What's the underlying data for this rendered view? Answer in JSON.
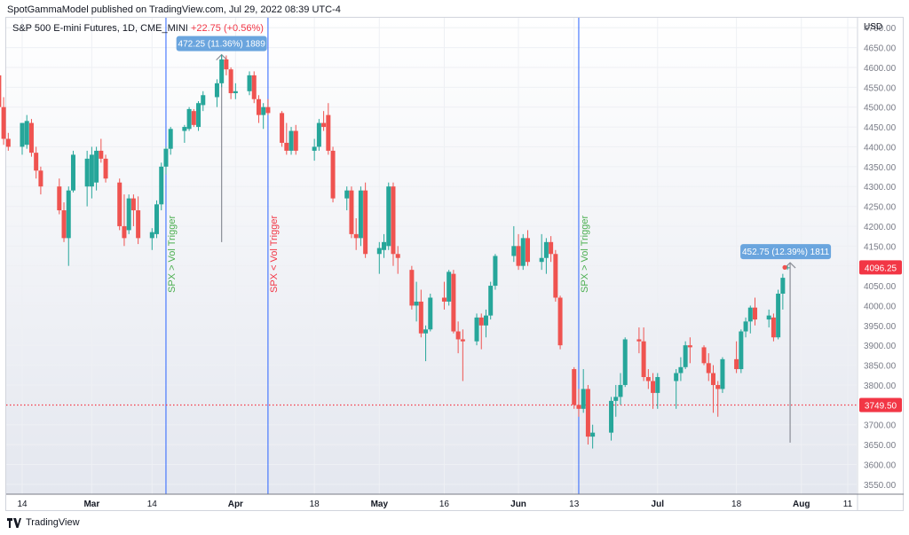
{
  "header": {
    "published": "SpotGammaModel published on TradingView.com, Jul 29, 2022 08:39 UTC-4"
  },
  "legend": {
    "symbol": "S&P 500 E-mini Futures, 1D, CME_MINI",
    "change": "+22.75 (+0.56%)"
  },
  "footer": {
    "brand": "TradingView"
  },
  "colors": {
    "up": "#26a69a",
    "down": "#ef5350",
    "vline": "#2962ff",
    "green_text": "#4caf50",
    "red_text": "#f23645",
    "badge": "#6aa5de"
  },
  "chart_data": {
    "type": "candlestick",
    "currency_label": "USD",
    "ylim": [
      3525,
      4725
    ],
    "y_ticks": [
      3550,
      3600,
      3650,
      3700,
      3750,
      3800,
      3850,
      3900,
      3950,
      4000,
      4050,
      4100,
      4150,
      4200,
      4250,
      4300,
      4350,
      4400,
      4450,
      4500,
      4550,
      4600,
      4650,
      4700
    ],
    "x_ticks": [
      {
        "label": "14",
        "date": "2022-02-14"
      },
      {
        "label": "Mar",
        "date": "2022-03-01"
      },
      {
        "label": "14",
        "date": "2022-03-14"
      },
      {
        "label": "Apr",
        "date": "2022-04-01"
      },
      {
        "label": "18",
        "date": "2022-04-18"
      },
      {
        "label": "May",
        "date": "2022-05-02"
      },
      {
        "label": "16",
        "date": "2022-05-16"
      },
      {
        "label": "Jun",
        "date": "2022-06-01"
      },
      {
        "label": "13",
        "date": "2022-06-13"
      },
      {
        "label": "Jul",
        "date": "2022-07-01"
      },
      {
        "label": "18",
        "date": "2022-07-18"
      },
      {
        "label": "Aug",
        "date": "2022-08-01"
      },
      {
        "label": "11",
        "date": "2022-08-11"
      }
    ],
    "price_labels": [
      {
        "value": 4096.25,
        "text": "4096.25"
      },
      {
        "value": 3749.5,
        "text": "3749.50"
      }
    ],
    "reference_line": 3749.5,
    "vertical_lines": [
      {
        "date": "2022-03-17",
        "text": "SPX > Vol Trigger",
        "color": "green"
      },
      {
        "date": "2022-04-08",
        "text": "SPX < Vol Trigger",
        "color": "red"
      },
      {
        "date": "2022-06-14",
        "text": "SPX > Vol Trigger",
        "color": "green"
      }
    ],
    "measures": [
      {
        "from_date": "2022-03-29",
        "from": 4160,
        "to": 4632,
        "text": "472.25 (11.36%) 1889"
      },
      {
        "from_date": "2022-07-29",
        "from": 3655,
        "to": 4108,
        "text": "452.75 (12.39%) 1811"
      }
    ],
    "candles": [
      {
        "d": "2022-02-09",
        "o": 4580,
        "h": 4588,
        "l": 4495,
        "c": 4500
      },
      {
        "d": "2022-02-10",
        "o": 4500,
        "h": 4525,
        "l": 4405,
        "c": 4420
      },
      {
        "d": "2022-02-11",
        "o": 4420,
        "h": 4435,
        "l": 4390,
        "c": 4400
      },
      {
        "d": "2022-02-14",
        "o": 4400,
        "h": 4460,
        "l": 4380,
        "c": 4460
      },
      {
        "d": "2022-02-15",
        "o": 4405,
        "h": 4480,
        "l": 4395,
        "c": 4465
      },
      {
        "d": "2022-02-16",
        "o": 4460,
        "h": 4470,
        "l": 4375,
        "c": 4385
      },
      {
        "d": "2022-02-17",
        "o": 4385,
        "h": 4400,
        "l": 4320,
        "c": 4340
      },
      {
        "d": "2022-02-18",
        "o": 4340,
        "h": 4350,
        "l": 4280,
        "c": 4300
      },
      {
        "d": "2022-02-22",
        "o": 4300,
        "h": 4320,
        "l": 4230,
        "c": 4240
      },
      {
        "d": "2022-02-23",
        "o": 4240,
        "h": 4260,
        "l": 4160,
        "c": 4170
      },
      {
        "d": "2022-02-24",
        "o": 4170,
        "h": 4300,
        "l": 4100,
        "c": 4290
      },
      {
        "d": "2022-02-25",
        "o": 4290,
        "h": 4390,
        "l": 4285,
        "c": 4380
      },
      {
        "d": "2022-02-28",
        "o": 4300,
        "h": 4390,
        "l": 4250,
        "c": 4370
      },
      {
        "d": "2022-03-01",
        "o": 4300,
        "h": 4400,
        "l": 4270,
        "c": 4380
      },
      {
        "d": "2022-03-02",
        "o": 4310,
        "h": 4400,
        "l": 4290,
        "c": 4390
      },
      {
        "d": "2022-03-03",
        "o": 4390,
        "h": 4420,
        "l": 4360,
        "c": 4370
      },
      {
        "d": "2022-03-04",
        "o": 4370,
        "h": 4380,
        "l": 4310,
        "c": 4320
      },
      {
        "d": "2022-03-07",
        "o": 4310,
        "h": 4320,
        "l": 4190,
        "c": 4200
      },
      {
        "d": "2022-03-08",
        "o": 4200,
        "h": 4280,
        "l": 4150,
        "c": 4170
      },
      {
        "d": "2022-03-09",
        "o": 4190,
        "h": 4280,
        "l": 4180,
        "c": 4270
      },
      {
        "d": "2022-03-10",
        "o": 4270,
        "h": 4280,
        "l": 4200,
        "c": 4240
      },
      {
        "d": "2022-03-11",
        "o": 4240,
        "h": 4275,
        "l": 4155,
        "c": 4170
      },
      {
        "d": "2022-03-14",
        "o": 4170,
        "h": 4195,
        "l": 4140,
        "c": 4185
      },
      {
        "d": "2022-03-15",
        "o": 4180,
        "h": 4265,
        "l": 4170,
        "c": 4255
      },
      {
        "d": "2022-03-16",
        "o": 4255,
        "h": 4360,
        "l": 4240,
        "c": 4350
      },
      {
        "d": "2022-03-17",
        "o": 4350,
        "h": 4400,
        "l": 4330,
        "c": 4395
      },
      {
        "d": "2022-03-18",
        "o": 4395,
        "h": 4450,
        "l": 4380,
        "c": 4445
      },
      {
        "d": "2022-03-21",
        "o": 4440,
        "h": 4455,
        "l": 4410,
        "c": 4450
      },
      {
        "d": "2022-03-22",
        "o": 4445,
        "h": 4500,
        "l": 4440,
        "c": 4495
      },
      {
        "d": "2022-03-23",
        "o": 4490,
        "h": 4495,
        "l": 4450,
        "c": 4455
      },
      {
        "d": "2022-03-24",
        "o": 4450,
        "h": 4515,
        "l": 4440,
        "c": 4510
      },
      {
        "d": "2022-03-25",
        "o": 4505,
        "h": 4540,
        "l": 4490,
        "c": 4530
      },
      {
        "d": "2022-03-28",
        "o": 4525,
        "h": 4570,
        "l": 4500,
        "c": 4560
      },
      {
        "d": "2022-03-29",
        "o": 4560,
        "h": 4632,
        "l": 4550,
        "c": 4620
      },
      {
        "d": "2022-03-30",
        "o": 4620,
        "h": 4630,
        "l": 4580,
        "c": 4595
      },
      {
        "d": "2022-03-31",
        "o": 4595,
        "h": 4600,
        "l": 4520,
        "c": 4535
      },
      {
        "d": "2022-04-01",
        "o": 4535,
        "h": 4560,
        "l": 4520,
        "c": 4540
      },
      {
        "d": "2022-04-04",
        "o": 4540,
        "h": 4590,
        "l": 4530,
        "c": 4580
      },
      {
        "d": "2022-04-05",
        "o": 4580,
        "h": 4590,
        "l": 4510,
        "c": 4520
      },
      {
        "d": "2022-04-06",
        "o": 4520,
        "h": 4530,
        "l": 4460,
        "c": 4480
      },
      {
        "d": "2022-04-07",
        "o": 4480,
        "h": 4510,
        "l": 4445,
        "c": 4500
      },
      {
        "d": "2022-04-08",
        "o": 4500,
        "h": 4520,
        "l": 4480,
        "c": 4485
      },
      {
        "d": "2022-04-11",
        "o": 4485,
        "h": 4490,
        "l": 4400,
        "c": 4410
      },
      {
        "d": "2022-04-12",
        "o": 4410,
        "h": 4460,
        "l": 4380,
        "c": 4390
      },
      {
        "d": "2022-04-13",
        "o": 4390,
        "h": 4450,
        "l": 4380,
        "c": 4440
      },
      {
        "d": "2022-04-14",
        "o": 4440,
        "h": 4455,
        "l": 4380,
        "c": 4390
      },
      {
        "d": "2022-04-18",
        "o": 4390,
        "h": 4420,
        "l": 4365,
        "c": 4400
      },
      {
        "d": "2022-04-19",
        "o": 4400,
        "h": 4470,
        "l": 4390,
        "c": 4460
      },
      {
        "d": "2022-04-20",
        "o": 4460,
        "h": 4490,
        "l": 4440,
        "c": 4450
      },
      {
        "d": "2022-04-21",
        "o": 4480,
        "h": 4510,
        "l": 4380,
        "c": 4390
      },
      {
        "d": "2022-04-22",
        "o": 4390,
        "h": 4400,
        "l": 4260,
        "c": 4270
      },
      {
        "d": "2022-04-25",
        "o": 4270,
        "h": 4300,
        "l": 4240,
        "c": 4290
      },
      {
        "d": "2022-04-26",
        "o": 4290,
        "h": 4300,
        "l": 4170,
        "c": 4180
      },
      {
        "d": "2022-04-27",
        "o": 4180,
        "h": 4220,
        "l": 4140,
        "c": 4170
      },
      {
        "d": "2022-04-28",
        "o": 4170,
        "h": 4300,
        "l": 4150,
        "c": 4290
      },
      {
        "d": "2022-04-29",
        "o": 4290,
        "h": 4310,
        "l": 4120,
        "c": 4130
      },
      {
        "d": "2022-05-02",
        "o": 4130,
        "h": 4160,
        "l": 4080,
        "c": 4145
      },
      {
        "d": "2022-05-03",
        "o": 4140,
        "h": 4180,
        "l": 4120,
        "c": 4160
      },
      {
        "d": "2022-05-04",
        "o": 4150,
        "h": 4310,
        "l": 4140,
        "c": 4300
      },
      {
        "d": "2022-05-05",
        "o": 4300,
        "h": 4310,
        "l": 4100,
        "c": 4130
      },
      {
        "d": "2022-05-06",
        "o": 4130,
        "h": 4150,
        "l": 4080,
        "c": 4120
      },
      {
        "d": "2022-05-09",
        "o": 4090,
        "h": 4100,
        "l": 3990,
        "c": 4000
      },
      {
        "d": "2022-05-10",
        "o": 4000,
        "h": 4060,
        "l": 3960,
        "c": 4010
      },
      {
        "d": "2022-05-11",
        "o": 4010,
        "h": 4040,
        "l": 3920,
        "c": 3930
      },
      {
        "d": "2022-05-12",
        "o": 3930,
        "h": 3950,
        "l": 3860,
        "c": 3940
      },
      {
        "d": "2022-05-13",
        "o": 3940,
        "h": 4030,
        "l": 3935,
        "c": 4020
      },
      {
        "d": "2022-05-16",
        "o": 4020,
        "h": 4060,
        "l": 3990,
        "c": 4010
      },
      {
        "d": "2022-05-17",
        "o": 4010,
        "h": 4090,
        "l": 4000,
        "c": 4085
      },
      {
        "d": "2022-05-18",
        "o": 4080,
        "h": 4090,
        "l": 3930,
        "c": 3935
      },
      {
        "d": "2022-05-19",
        "o": 3935,
        "h": 3960,
        "l": 3880,
        "c": 3915
      },
      {
        "d": "2022-05-20",
        "o": 3915,
        "h": 3940,
        "l": 3810,
        "c": 3910
      },
      {
        "d": "2022-05-23",
        "o": 3910,
        "h": 3980,
        "l": 3900,
        "c": 3970
      },
      {
        "d": "2022-05-24",
        "o": 3970,
        "h": 3980,
        "l": 3890,
        "c": 3950
      },
      {
        "d": "2022-05-25",
        "o": 3950,
        "h": 3990,
        "l": 3920,
        "c": 3975
      },
      {
        "d": "2022-05-26",
        "o": 3975,
        "h": 4060,
        "l": 3965,
        "c": 4050
      },
      {
        "d": "2022-05-27",
        "o": 4050,
        "h": 4130,
        "l": 4040,
        "c": 4125
      },
      {
        "d": "2022-05-31",
        "o": 4125,
        "h": 4200,
        "l": 4110,
        "c": 4150
      },
      {
        "d": "2022-06-01",
        "o": 4150,
        "h": 4180,
        "l": 4090,
        "c": 4100
      },
      {
        "d": "2022-06-02",
        "o": 4100,
        "h": 4180,
        "l": 4090,
        "c": 4170
      },
      {
        "d": "2022-06-03",
        "o": 4170,
        "h": 4190,
        "l": 4100,
        "c": 4110
      },
      {
        "d": "2022-06-06",
        "o": 4110,
        "h": 4180,
        "l": 4090,
        "c": 4120
      },
      {
        "d": "2022-06-07",
        "o": 4120,
        "h": 4170,
        "l": 4080,
        "c": 4160
      },
      {
        "d": "2022-06-08",
        "o": 4160,
        "h": 4175,
        "l": 4110,
        "c": 4130
      },
      {
        "d": "2022-06-09",
        "o": 4130,
        "h": 4140,
        "l": 4010,
        "c": 4020
      },
      {
        "d": "2022-06-10",
        "o": 4020,
        "h": 4025,
        "l": 3890,
        "c": 3900
      },
      {
        "d": "2022-06-13",
        "o": 3840,
        "h": 3845,
        "l": 3740,
        "c": 3750
      },
      {
        "d": "2022-06-14",
        "o": 3750,
        "h": 3790,
        "l": 3720,
        "c": 3740
      },
      {
        "d": "2022-06-15",
        "o": 3740,
        "h": 3840,
        "l": 3730,
        "c": 3790
      },
      {
        "d": "2022-06-16",
        "o": 3790,
        "h": 3800,
        "l": 3650,
        "c": 3670
      },
      {
        "d": "2022-06-17",
        "o": 3670,
        "h": 3700,
        "l": 3640,
        "c": 3680
      },
      {
        "d": "2022-06-21",
        "o": 3680,
        "h": 3770,
        "l": 3660,
        "c": 3760
      },
      {
        "d": "2022-06-22",
        "o": 3760,
        "h": 3800,
        "l": 3720,
        "c": 3770
      },
      {
        "d": "2022-06-23",
        "o": 3770,
        "h": 3830,
        "l": 3750,
        "c": 3800
      },
      {
        "d": "2022-06-24",
        "o": 3800,
        "h": 3920,
        "l": 3795,
        "c": 3915
      },
      {
        "d": "2022-06-27",
        "o": 3915,
        "h": 3945,
        "l": 3880,
        "c": 3910
      },
      {
        "d": "2022-06-28",
        "o": 3910,
        "h": 3945,
        "l": 3810,
        "c": 3820
      },
      {
        "d": "2022-06-29",
        "o": 3820,
        "h": 3840,
        "l": 3790,
        "c": 3810
      },
      {
        "d": "2022-06-30",
        "o": 3810,
        "h": 3830,
        "l": 3740,
        "c": 3780
      },
      {
        "d": "2022-07-01",
        "o": 3780,
        "h": 3830,
        "l": 3740,
        "c": 3820
      },
      {
        "d": "2022-07-05",
        "o": 3810,
        "h": 3840,
        "l": 3740,
        "c": 3830
      },
      {
        "d": "2022-07-06",
        "o": 3830,
        "h": 3870,
        "l": 3810,
        "c": 3845
      },
      {
        "d": "2022-07-07",
        "o": 3845,
        "h": 3910,
        "l": 3840,
        "c": 3900
      },
      {
        "d": "2022-07-08",
        "o": 3900,
        "h": 3920,
        "l": 3855,
        "c": 3895
      },
      {
        "d": "2022-07-11",
        "o": 3895,
        "h": 3900,
        "l": 3850,
        "c": 3855
      },
      {
        "d": "2022-07-12",
        "o": 3855,
        "h": 3880,
        "l": 3810,
        "c": 3830
      },
      {
        "d": "2022-07-13",
        "o": 3830,
        "h": 3850,
        "l": 3730,
        "c": 3800
      },
      {
        "d": "2022-07-14",
        "o": 3800,
        "h": 3810,
        "l": 3720,
        "c": 3790
      },
      {
        "d": "2022-07-15",
        "o": 3790,
        "h": 3870,
        "l": 3780,
        "c": 3865
      },
      {
        "d": "2022-07-18",
        "o": 3865,
        "h": 3910,
        "l": 3830,
        "c": 3840
      },
      {
        "d": "2022-07-19",
        "o": 3840,
        "h": 3940,
        "l": 3830,
        "c": 3935
      },
      {
        "d": "2022-07-20",
        "o": 3935,
        "h": 3970,
        "l": 3920,
        "c": 3960
      },
      {
        "d": "2022-07-21",
        "o": 3960,
        "h": 4000,
        "l": 3930,
        "c": 3995
      },
      {
        "d": "2022-07-22",
        "o": 3995,
        "h": 4020,
        "l": 3950,
        "c": 3965
      },
      {
        "d": "2022-07-25",
        "o": 3965,
        "h": 3990,
        "l": 3945,
        "c": 3975
      },
      {
        "d": "2022-07-26",
        "o": 3970,
        "h": 3980,
        "l": 3910,
        "c": 3920
      },
      {
        "d": "2022-07-27",
        "o": 3920,
        "h": 4040,
        "l": 3915,
        "c": 4030
      },
      {
        "d": "2022-07-28",
        "o": 4030,
        "h": 4080,
        "l": 3990,
        "c": 4070
      },
      {
        "d": "2022-07-29",
        "o": 4095,
        "h": 4100,
        "l": 4090,
        "c": 4096.25
      }
    ]
  }
}
